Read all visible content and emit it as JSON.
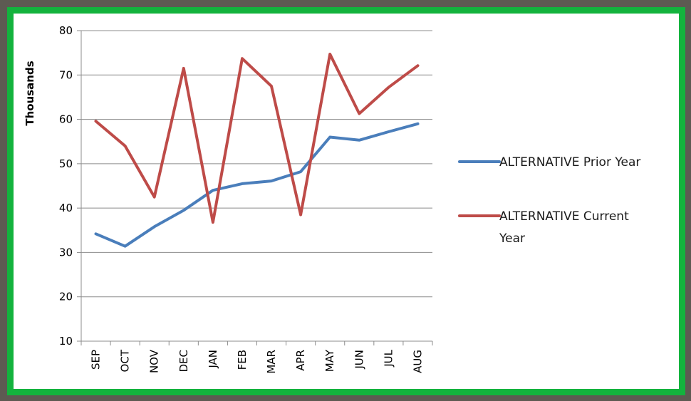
{
  "chart_data": {
    "type": "line",
    "title": "",
    "xlabel": "",
    "ylabel": "Thousands",
    "ylim": [
      10,
      80
    ],
    "yticks": [
      10,
      20,
      30,
      40,
      50,
      60,
      70,
      80
    ],
    "grid": true,
    "legend_position": "right",
    "categories": [
      "SEP",
      "OCT",
      "NOV",
      "DEC",
      "JAN",
      "FEB",
      "MAR",
      "APR",
      "MAY",
      "JUN",
      "JUL",
      "AUG"
    ],
    "series": [
      {
        "name": "ALTERNATIVE Prior Year",
        "color": "#4a7ebb",
        "values": [
          34.2,
          31.4,
          35.8,
          39.5,
          44.0,
          45.5,
          46.1,
          48.2,
          56.0,
          55.3,
          57.2,
          59.0
        ],
        "legend_lines": [
          "ALTERNATIVE Prior Year"
        ]
      },
      {
        "name": "ALTERNATIVE Current Year",
        "color": "#be4b48",
        "values": [
          59.6,
          54.0,
          42.5,
          71.5,
          36.8,
          73.7,
          67.5,
          38.5,
          74.7,
          61.3,
          67.2,
          72.1
        ],
        "legend_lines": [
          "ALTERNATIVE Current",
          "Year"
        ]
      }
    ]
  }
}
